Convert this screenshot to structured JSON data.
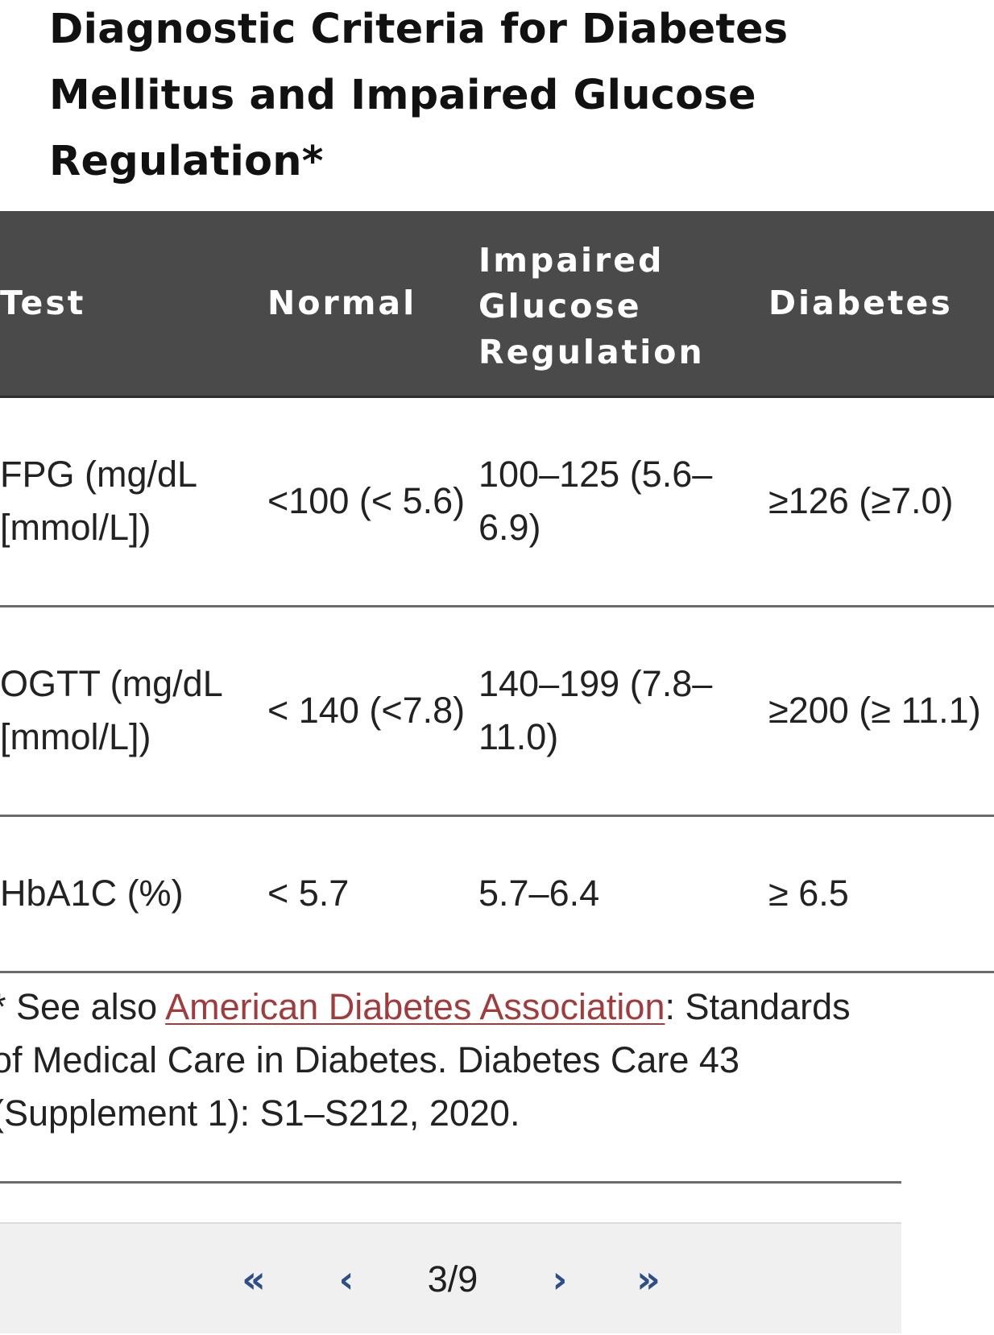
{
  "page": {
    "title": "Diagnostic Criteria for Diabetes Mellitus and Impaired Glucose Regulation*"
  },
  "table": {
    "headers": {
      "test": "Test",
      "normal": "Normal",
      "impaired": "Impaired Glucose Regulation",
      "diabetes": "Diabetes"
    },
    "rows": [
      {
        "test": "FPG (mg/dL [mmol/L])",
        "normal": "<100 (< 5.6)",
        "impaired": "100–125 (5.6–6.9)",
        "diabetes": "≥126 (≥7.0)"
      },
      {
        "test": "OGTT (mg/dL [mmol/L])",
        "normal": "< 140 (<7.8)",
        "impaired": "140–199 (7.8–11.0)",
        "diabetes": "≥200 (≥ 11.1)"
      },
      {
        "test": "HbA1C (%)",
        "normal": "< 5.7",
        "impaired": "5.7–6.4",
        "diabetes": "≥ 6.5"
      }
    ]
  },
  "footnote": {
    "prefix": "* See also ",
    "link_text": "American Diabetes Association",
    "suffix": ": Standards of Medical Care in Diabetes. Diabetes Care 43 (Supplement 1): S1–S212, 2020.",
    "link_color": "#a23b3b"
  },
  "pager": {
    "first_label": "«",
    "prev_label": "‹",
    "page_indicator": "3/9",
    "next_label": "›",
    "last_label": "»",
    "accent_color": "#2d4f86"
  },
  "colors": {
    "header_bg": "#4a4a4a",
    "pager_bg": "#f0f0f0"
  }
}
